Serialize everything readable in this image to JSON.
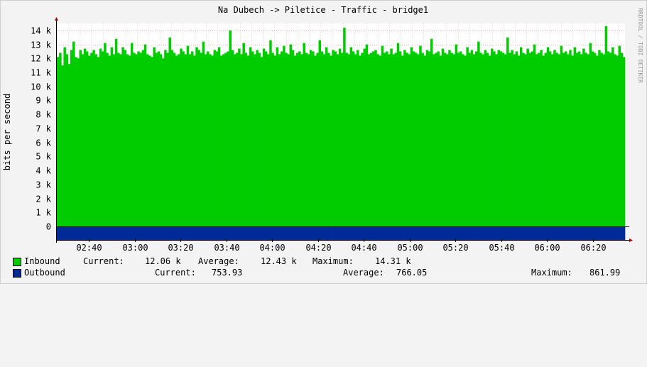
{
  "chart_data": {
    "type": "area",
    "title": "Na Dubech -> Piletice - Traffic - bridge1",
    "watermark": "RRDTOOL / TOBI OETIKER",
    "ylabel": "bits per second",
    "xlabel": "",
    "ylim": [
      -1000,
      14500
    ],
    "y_ticks": [
      0,
      1000,
      2000,
      3000,
      4000,
      5000,
      6000,
      7000,
      8000,
      9000,
      10000,
      11000,
      12000,
      13000,
      14000
    ],
    "y_tick_labels": [
      "0",
      "1 k",
      "2 k",
      "3 k",
      "4 k",
      "5 k",
      "6 k",
      "7 k",
      "8 k",
      "9 k",
      "10 k",
      "11 k",
      "12 k",
      "13 k",
      "14 k"
    ],
    "x_range_minutes": [
      0,
      248
    ],
    "x_ticks_minutes": [
      14,
      34,
      54,
      74,
      94,
      114,
      134,
      154,
      174,
      194,
      214,
      234
    ],
    "x_tick_labels": [
      "02:40",
      "03:00",
      "03:20",
      "03:40",
      "04:00",
      "04:20",
      "04:40",
      "05:00",
      "05:20",
      "05:40",
      "06:00",
      "06:20"
    ],
    "grid": true,
    "series": [
      {
        "name": "Inbound",
        "color": "#00cc00",
        "direction": "up",
        "values": [
          12100,
          12400,
          11500,
          12800,
          12300,
          11600,
          12600,
          13200,
          12100,
          12000,
          12600,
          12300,
          12700,
          12500,
          12200,
          12400,
          12600,
          12300,
          12100,
          12700,
          12500,
          13100,
          12400,
          12200,
          12800,
          12300,
          13400,
          12400,
          12300,
          12800,
          12600,
          12300,
          12200,
          13100,
          12400,
          12300,
          12500,
          12400,
          12600,
          13000,
          12300,
          12200,
          12100,
          12800,
          12400,
          12500,
          12300,
          12000,
          12600,
          12400,
          13500,
          12600,
          12400,
          12200,
          12300,
          12700,
          12500,
          12300,
          12900,
          12300,
          12500,
          12200,
          12800,
          12600,
          12400,
          13200,
          12300,
          12500,
          12300,
          12200,
          12600,
          12500,
          12800,
          12200,
          12300,
          12400,
          12500,
          14000,
          12600,
          12300,
          12400,
          12700,
          12300,
          13100,
          12400,
          12200,
          12800,
          12500,
          12300,
          12600,
          12400,
          12100,
          12700,
          12500,
          12300,
          13300,
          12400,
          12200,
          12800,
          12300,
          12500,
          12900,
          12400,
          12300,
          13000,
          12600,
          12200,
          12400,
          12500,
          12300,
          13100,
          12400,
          12300,
          12600,
          12500,
          12200,
          12400,
          13300,
          12500,
          12300,
          12800,
          12400,
          12200,
          12600,
          12500,
          12300,
          12700,
          12400,
          14200,
          12400,
          12300,
          12800,
          12500,
          12300,
          12600,
          12200,
          12400,
          12700,
          13000,
          12300,
          12400,
          12500,
          12600,
          12300,
          12200,
          12900,
          12400,
          12500,
          12300,
          12700,
          12300,
          12400,
          13100,
          12500,
          12200,
          12600,
          12400,
          12300,
          12800,
          12500,
          12400,
          12300,
          12900,
          12400,
          12200,
          12600,
          12500,
          13400,
          12300,
          12400,
          12500,
          12200,
          12700,
          12400,
          12300,
          12600,
          12400,
          12300,
          13000,
          12400,
          12500,
          12300,
          12200,
          12800,
          12400,
          12600,
          12300,
          12500,
          13200,
          12400,
          12300,
          12600,
          12400,
          12200,
          12700,
          12500,
          12300,
          12600,
          12500,
          12400,
          12300,
          13500,
          12400,
          12600,
          12300,
          12500,
          12200,
          12800,
          12400,
          12300,
          12700,
          12400,
          12500,
          13000,
          12300,
          12400,
          12600,
          12200,
          12400,
          12800,
          12500,
          12300,
          12600,
          12400,
          12300,
          12900,
          12400,
          12500,
          12300,
          12600,
          12200,
          12800,
          12400,
          12500,
          12300,
          12700,
          12400,
          12300,
          13100,
          12500,
          12400,
          12200,
          12600,
          12400,
          12300,
          14300,
          12500,
          12400,
          12800,
          12300,
          12200,
          12900,
          12400,
          12100
        ]
      },
      {
        "name": "Outbound",
        "color": "#002a97",
        "direction": "down",
        "values": [
          760,
          770,
          750,
          800,
          740,
          760,
          780,
          750,
          770,
          790,
          740,
          760,
          780,
          760,
          820,
          750,
          770,
          760,
          790,
          740,
          760,
          780,
          770,
          750,
          800,
          760,
          740,
          780,
          760,
          770,
          750,
          860,
          760,
          780,
          740,
          770,
          760,
          790,
          750,
          770,
          810,
          760,
          740,
          780,
          760,
          770,
          750,
          790,
          760,
          740,
          780,
          770,
          760,
          750,
          800,
          760,
          770,
          740,
          780,
          760,
          820,
          750,
          770,
          760,
          790,
          740,
          760,
          780,
          770,
          750,
          800,
          760,
          740,
          780,
          760,
          770,
          750,
          830,
          760,
          780,
          740,
          770,
          760,
          790,
          750,
          770,
          800,
          760,
          740,
          780,
          760,
          770,
          750,
          790,
          760,
          740,
          780,
          770,
          760,
          750,
          800,
          760,
          770,
          740,
          780,
          760,
          850,
          750,
          770,
          760,
          790,
          740,
          760,
          780,
          770,
          750,
          800,
          760,
          740,
          780,
          760,
          770,
          750,
          830,
          760,
          780,
          740,
          770,
          760,
          790,
          750,
          770,
          800,
          760,
          740,
          780,
          760,
          770,
          750,
          790,
          760,
          740,
          780,
          770,
          760,
          750,
          860,
          760,
          770,
          740,
          780,
          760,
          810,
          750,
          770,
          760,
          790,
          740,
          760,
          780,
          770,
          750,
          800,
          760,
          740,
          780,
          760,
          770,
          750,
          840,
          760,
          780,
          740,
          770,
          760,
          790,
          750,
          770,
          800,
          760,
          740,
          780,
          760,
          770,
          750,
          790,
          760,
          740,
          780,
          770,
          760,
          750,
          800,
          760,
          770,
          740,
          780,
          760,
          820,
          750,
          770,
          760,
          790,
          740,
          760,
          780,
          770,
          750,
          800,
          760,
          740,
          780,
          760,
          770,
          750,
          830,
          760,
          780,
          740,
          770,
          760,
          790,
          750,
          770,
          800,
          760,
          740,
          780,
          760,
          770,
          750,
          790,
          760,
          740,
          780,
          770,
          760,
          750,
          800,
          760,
          770,
          740,
          780,
          760,
          850,
          750,
          770,
          760
        ]
      }
    ]
  },
  "legend": [
    {
      "name": "Inbound",
      "color": "#00cc00",
      "current_label": "Current:",
      "current": "12.06 k",
      "average_label": "Average:",
      "average": "12.43 k",
      "maximum_label": "Maximum:",
      "maximum": "14.31 k"
    },
    {
      "name": "Outbound",
      "color": "#002a97",
      "current_label": "Current:",
      "current": "753.93",
      "average_label": "Average:",
      "average": "766.05",
      "maximum_label": "Maximum:",
      "maximum": "861.99"
    }
  ]
}
